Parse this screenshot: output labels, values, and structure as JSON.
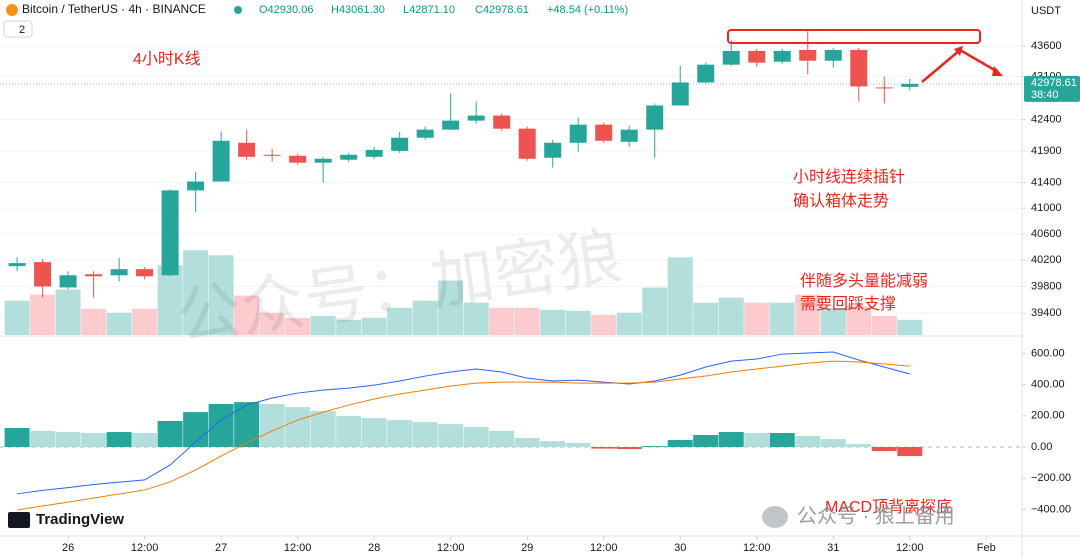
{
  "header": {
    "symbol": "Bitcoin / TetherUS · 4h · BINANCE",
    "ohlc": [
      "O42930.06",
      "H43061.30",
      "L42871.10",
      "C42978.61"
    ],
    "change": "+48.54 (+0.11%)",
    "badge": "2",
    "currency": "USDT",
    "last_price": "42978.61",
    "countdown": "38:40",
    "logo": "TradingView",
    "watermark": "公众号：加密狼",
    "footer_mark": "公众号 · 狼上备用"
  },
  "annotations": [
    "4小时K线",
    "小时线连续插针",
    "确认箱体走势",
    "伴随多头量能减弱",
    "需要回踩支撑",
    "MACD顶背离探底"
  ],
  "chart_data": [
    {
      "type": "candlestick",
      "log_scale": true,
      "colors": {
        "up": "#26a69a",
        "down": "#ef5350",
        "volume_up": "#b2dfdb",
        "volume_down": "#fccbcd"
      },
      "x": [
        -2,
        -1,
        0,
        1,
        2,
        3,
        4,
        5,
        6,
        7,
        8,
        9,
        10,
        11,
        12,
        13,
        14,
        15,
        16,
        17,
        18,
        19,
        20,
        21,
        22,
        23,
        24,
        25,
        26,
        27,
        28,
        29,
        30,
        31,
        32,
        33
      ],
      "open": [
        40108,
        40169,
        39785,
        39985,
        39969,
        40062,
        39969,
        41277,
        41416,
        42029,
        41838,
        41822,
        41713,
        41760,
        41806,
        41900,
        42110,
        42239,
        42384,
        42465,
        42255,
        41791,
        42029,
        42319,
        42045,
        42239,
        42628,
        43002,
        43293,
        43519,
        43342,
        43535,
        43358,
        43535,
        42921,
        42930.06
      ],
      "high": [
        40246,
        40215,
        40031,
        40031,
        40231,
        40092,
        41292,
        41572,
        42206,
        42239,
        41932,
        41853,
        41806,
        41869,
        41964,
        42206,
        42287,
        42823,
        42693,
        42498,
        42287,
        42077,
        42433,
        42352,
        42303,
        42661,
        43277,
        43326,
        43697,
        43552,
        43552,
        43842,
        43568,
        43568,
        43100,
        43061.3
      ],
      "low": [
        40031,
        39631,
        39754,
        39631,
        39877,
        39908,
        39954,
        40938,
        41416,
        41760,
        41728,
        41682,
        41400,
        41728,
        41775,
        41869,
        42077,
        42239,
        42335,
        42223,
        41744,
        41635,
        41884,
        42029,
        41964,
        41791,
        42628,
        42986,
        43277,
        43261,
        43310,
        43132,
        43245,
        42693,
        42661,
        42871.1
      ],
      "close": [
        40154,
        39800,
        39969,
        39954,
        40062,
        39954,
        41277,
        41416,
        42061,
        41806,
        41822,
        41713,
        41775,
        41838,
        41916,
        42110,
        42239,
        42384,
        42465,
        42255,
        41775,
        42029,
        42319,
        42061,
        42239,
        42628,
        43002,
        43293,
        43519,
        43326,
        43519,
        43358,
        43535,
        42937,
        42905,
        42978.61
      ],
      "volume": [
        34,
        40,
        45,
        26,
        22,
        26,
        69,
        84,
        79,
        39,
        22,
        17,
        19,
        15,
        17,
        27,
        34,
        54,
        32,
        27,
        27,
        25,
        24,
        20,
        22,
        47,
        77,
        32,
        37,
        32,
        32,
        40,
        27,
        29,
        19,
        15
      ],
      "vlim": [
        0,
        332
      ],
      "xlim": [
        -2.67,
        37.4
      ],
      "xticks": [
        {
          "value": 0,
          "label": "26"
        },
        {
          "value": 3,
          "label": "12:00"
        },
        {
          "value": 6,
          "label": "27"
        },
        {
          "value": 9,
          "label": "12:00"
        },
        {
          "value": 12,
          "label": "28"
        },
        {
          "value": 15,
          "label": "12:00"
        },
        {
          "value": 18,
          "label": "29"
        },
        {
          "value": 21,
          "label": "12:00"
        },
        {
          "value": 24,
          "label": "30"
        },
        {
          "value": 27,
          "label": "12:00"
        },
        {
          "value": 30,
          "label": "31"
        },
        {
          "value": 33,
          "label": "12:00"
        },
        {
          "value": 36,
          "label": "Feb"
        }
      ],
      "ylim": [
        39074,
        44368
      ],
      "yticks": [
        43600,
        43100,
        42400,
        41900,
        41400,
        41000,
        40600,
        40200,
        39800,
        39400
      ]
    },
    {
      "type": "macd",
      "colors": {
        "macd": "#2962ff",
        "signal": "#f57c00",
        "up_strong": "#26a69a",
        "up_weak": "#b2dfdb",
        "down_strong": "#ef5350",
        "down_weak": "#ffcdd2"
      },
      "x": [
        -2,
        -1,
        0,
        1,
        2,
        3,
        4,
        5,
        6,
        7,
        8,
        9,
        10,
        11,
        12,
        13,
        14,
        15,
        16,
        17,
        18,
        19,
        20,
        21,
        22,
        23,
        24,
        25,
        26,
        27,
        28,
        29,
        30,
        31,
        32,
        33
      ],
      "histogram": [
        122,
        103,
        96,
        90,
        96,
        90,
        167,
        224,
        276,
        288,
        276,
        256,
        231,
        199,
        186,
        173,
        160,
        147,
        128,
        103,
        58,
        38,
        26,
        -10,
        -13,
        6,
        45,
        77,
        96,
        90,
        90,
        71,
        51,
        19,
        -26,
        -58
      ],
      "macd": [
        -300,
        -278,
        -260,
        -240,
        -225,
        -211,
        -115,
        32,
        173,
        269,
        314,
        346,
        365,
        378,
        397,
        423,
        455,
        481,
        500,
        481,
        442,
        423,
        429,
        416,
        404,
        423,
        461,
        513,
        551,
        564,
        596,
        603,
        609,
        558,
        513,
        468
      ],
      "signal": [
        -404,
        -378,
        -353,
        -327,
        -301,
        -276,
        -224,
        -147,
        -58,
        26,
        103,
        173,
        224,
        269,
        308,
        340,
        365,
        391,
        410,
        416,
        416,
        416,
        410,
        410,
        410,
        416,
        436,
        455,
        481,
        500,
        519,
        538,
        551,
        545,
        532,
        519
      ],
      "xlim": [
        -2.67,
        37.4
      ],
      "ylim": [
        -532,
        699
      ],
      "yticks": [
        {
          "value": 600,
          "label": "600.00"
        },
        {
          "value": 400,
          "label": "400.00"
        },
        {
          "value": 200,
          "label": "200.00"
        },
        {
          "value": 0,
          "label": "0.00"
        },
        {
          "value": -200,
          "label": "−200.00"
        },
        {
          "value": -400,
          "label": "−400.00"
        }
      ]
    }
  ]
}
